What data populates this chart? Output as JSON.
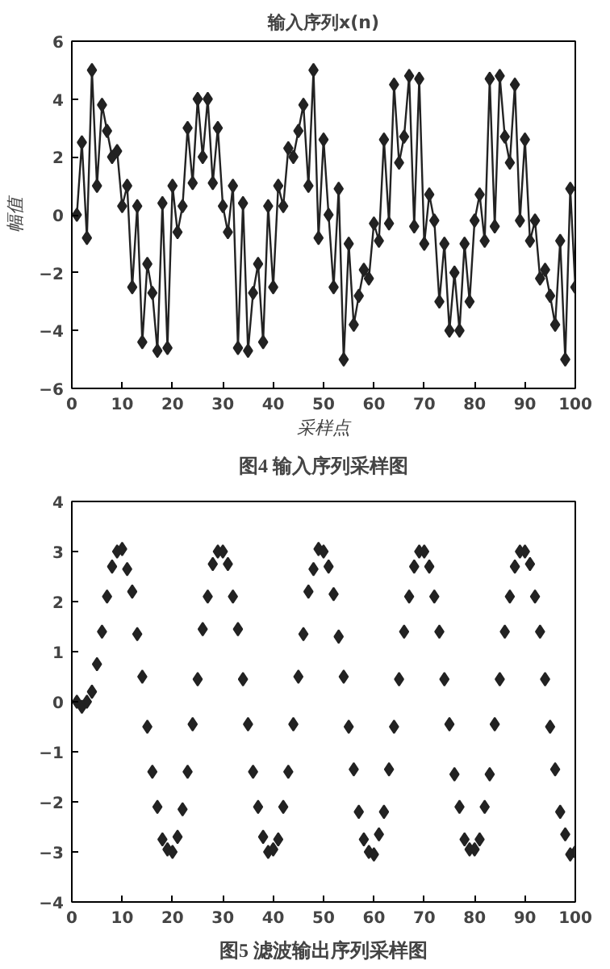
{
  "chart_data": [
    {
      "type": "line",
      "title": "输入序列x(n)",
      "xlabel": "采样点",
      "ylabel": "幅值",
      "annotations": [
        "图4 输入序列采样图"
      ],
      "marker": "diamond",
      "line_style": "solid",
      "grid": false,
      "x": [
        1,
        2,
        3,
        4,
        5,
        6,
        7,
        8,
        9,
        10,
        11,
        12,
        13,
        14,
        15,
        16,
        17,
        18,
        19,
        20,
        21,
        22,
        23,
        24,
        25,
        26,
        27,
        28,
        29,
        30,
        31,
        32,
        33,
        34,
        35,
        36,
        37,
        38,
        39,
        40,
        41,
        42,
        43,
        44,
        45,
        46,
        47,
        48,
        49,
        50,
        51,
        52,
        53,
        54,
        55,
        56,
        57,
        58,
        59,
        60,
        61,
        62,
        63,
        64,
        65,
        66,
        67,
        68,
        69,
        70,
        71,
        72,
        73,
        74,
        75,
        76,
        77,
        78,
        79,
        80,
        81,
        82,
        83,
        84,
        85,
        86,
        87,
        88,
        89,
        90,
        91,
        92,
        93,
        94,
        95,
        96,
        97,
        98,
        99,
        100
      ],
      "series": [
        {
          "color": "#222222",
          "values": [
            0,
            2.5,
            -0.8,
            5,
            1,
            3.8,
            2.9,
            2,
            2.2,
            0.3,
            1,
            -2.5,
            0.3,
            -4.4,
            -1.7,
            -2.7,
            -4.7,
            0.4,
            -4.6,
            1,
            -0.6,
            0.3,
            3,
            1.1,
            4,
            2,
            4,
            1.1,
            3,
            0.3,
            -0.6,
            1,
            -4.6,
            0.4,
            -4.7,
            -2.7,
            -1.7,
            -4.4,
            0.3,
            -2.5,
            1,
            0.3,
            2.3,
            2,
            2.9,
            3.8,
            1,
            5,
            -0.8,
            2.6,
            0,
            -2.5,
            0.9,
            -5,
            -1,
            -3.8,
            -2.8,
            -1.9,
            -2.2,
            -0.3,
            -0.9,
            2.6,
            -0.3,
            4.5,
            1.8,
            2.7,
            4.8,
            -0.4,
            4.7,
            -1,
            0.7,
            -0.2,
            -3,
            -1,
            -4,
            -2,
            -4,
            -1,
            -3,
            -0.2,
            0.7,
            -0.9,
            4.7,
            -0.4,
            4.8,
            2.7,
            1.8,
            4.5,
            -0.2,
            2.6,
            -0.9,
            -0.2,
            -2.2,
            -1.9,
            -2.8,
            -3.8,
            -0.9,
            -5,
            0.9,
            -2.5
          ]
        }
      ],
      "xlim": [
        0,
        100
      ],
      "xticks": [
        0,
        10,
        20,
        30,
        40,
        50,
        60,
        70,
        80,
        90,
        100
      ],
      "ylim": [
        -6,
        6
      ],
      "yticks": [
        -6,
        -4,
        -2,
        0,
        2,
        4,
        6
      ]
    },
    {
      "type": "scatter",
      "annotations": [
        "图5 滤波输出序列采样图"
      ],
      "marker": "diamond",
      "grid": false,
      "x": [
        1,
        2,
        3,
        4,
        5,
        6,
        7,
        8,
        9,
        10,
        11,
        12,
        13,
        14,
        15,
        16,
        17,
        18,
        19,
        20,
        21,
        22,
        23,
        24,
        25,
        26,
        27,
        28,
        29,
        30,
        31,
        32,
        33,
        34,
        35,
        36,
        37,
        38,
        39,
        40,
        41,
        42,
        43,
        44,
        45,
        46,
        47,
        48,
        49,
        50,
        51,
        52,
        53,
        54,
        55,
        56,
        57,
        58,
        59,
        60,
        61,
        62,
        63,
        64,
        65,
        66,
        67,
        68,
        69,
        70,
        71,
        72,
        73,
        74,
        75,
        76,
        77,
        78,
        79,
        80,
        81,
        82,
        83,
        84,
        85,
        86,
        87,
        88,
        89,
        90,
        91,
        92,
        93,
        94,
        95,
        96,
        97,
        98,
        99,
        100
      ],
      "series": [
        {
          "color": "#222222",
          "values": [
            0,
            -0.1,
            0,
            0.2,
            0.75,
            1.4,
            2.1,
            2.7,
            3,
            3.05,
            2.65,
            2.2,
            1.35,
            0.5,
            -0.5,
            -1.4,
            -2.1,
            -2.75,
            -2.95,
            -3,
            -2.7,
            -2.15,
            -1.4,
            -0.45,
            0.45,
            1.45,
            2.1,
            2.75,
            3,
            3,
            2.75,
            2.1,
            1.45,
            0.45,
            -0.45,
            -1.4,
            -2.1,
            -2.7,
            -3,
            -2.95,
            -2.75,
            -2.1,
            -1.4,
            -0.45,
            0.5,
            1.35,
            2.2,
            2.65,
            3.05,
            3,
            2.7,
            2.15,
            1.3,
            0.5,
            -0.5,
            -1.35,
            -2.2,
            -2.75,
            -3,
            -3.05,
            -2.65,
            -2.2,
            -1.35,
            -0.5,
            0.45,
            1.4,
            2.1,
            2.7,
            3,
            3,
            2.7,
            2.1,
            1.4,
            0.45,
            -0.45,
            -1.45,
            -2.1,
            -2.75,
            -2.95,
            -2.95,
            -2.75,
            -2.1,
            -1.45,
            -0.45,
            0.45,
            1.4,
            2.1,
            2.7,
            3,
            3,
            2.75,
            2.1,
            1.4,
            0.45,
            -0.5,
            -1.35,
            -2.2,
            -2.65,
            -3.05,
            -3
          ]
        }
      ],
      "xlim": [
        0,
        100
      ],
      "xticks": [
        0,
        10,
        20,
        30,
        40,
        50,
        60,
        70,
        80,
        90,
        100
      ],
      "ylim": [
        -4,
        4
      ],
      "yticks": [
        -4,
        -3,
        -2,
        -1,
        0,
        1,
        2,
        3,
        4
      ]
    }
  ]
}
